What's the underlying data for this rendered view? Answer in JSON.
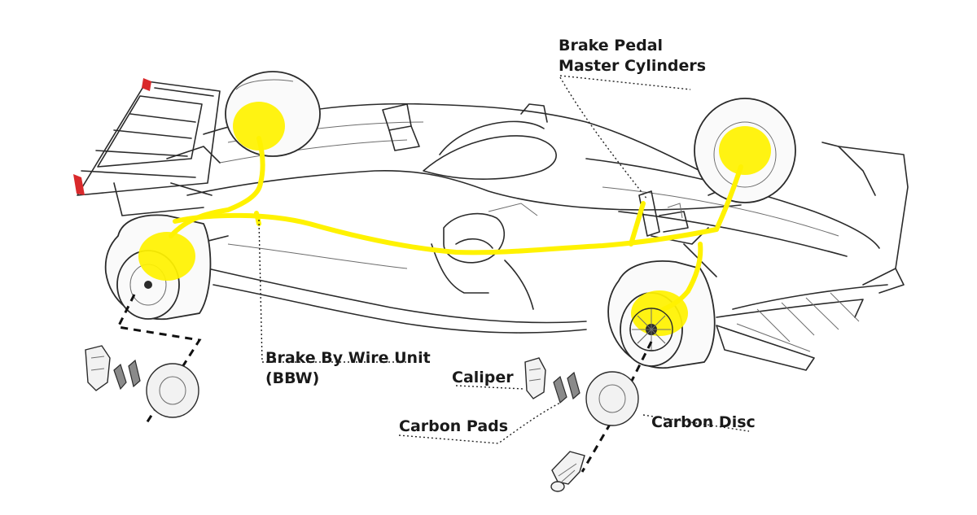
{
  "colors": {
    "brake_line": "#fff200",
    "endplate_accent": "#d9292b",
    "ink": "#2b2b2b"
  },
  "labels": {
    "brake_pedal_line1": "Brake Pedal",
    "brake_pedal_line2": "Master Cylinders",
    "bbw_line1": "Brake By Wire Unit",
    "bbw_line2": "(BBW)",
    "caliper": "Caliper",
    "carbon_pads": "Carbon Pads",
    "carbon_disc": "Carbon Disc"
  },
  "icons": {
    "car": "formula-one-car-illustration",
    "caliper": "brake-caliper-icon",
    "pads": "brake-pads-icon",
    "disc": "carbon-disc-icon",
    "hub": "wheel-hub-nut-icon"
  }
}
